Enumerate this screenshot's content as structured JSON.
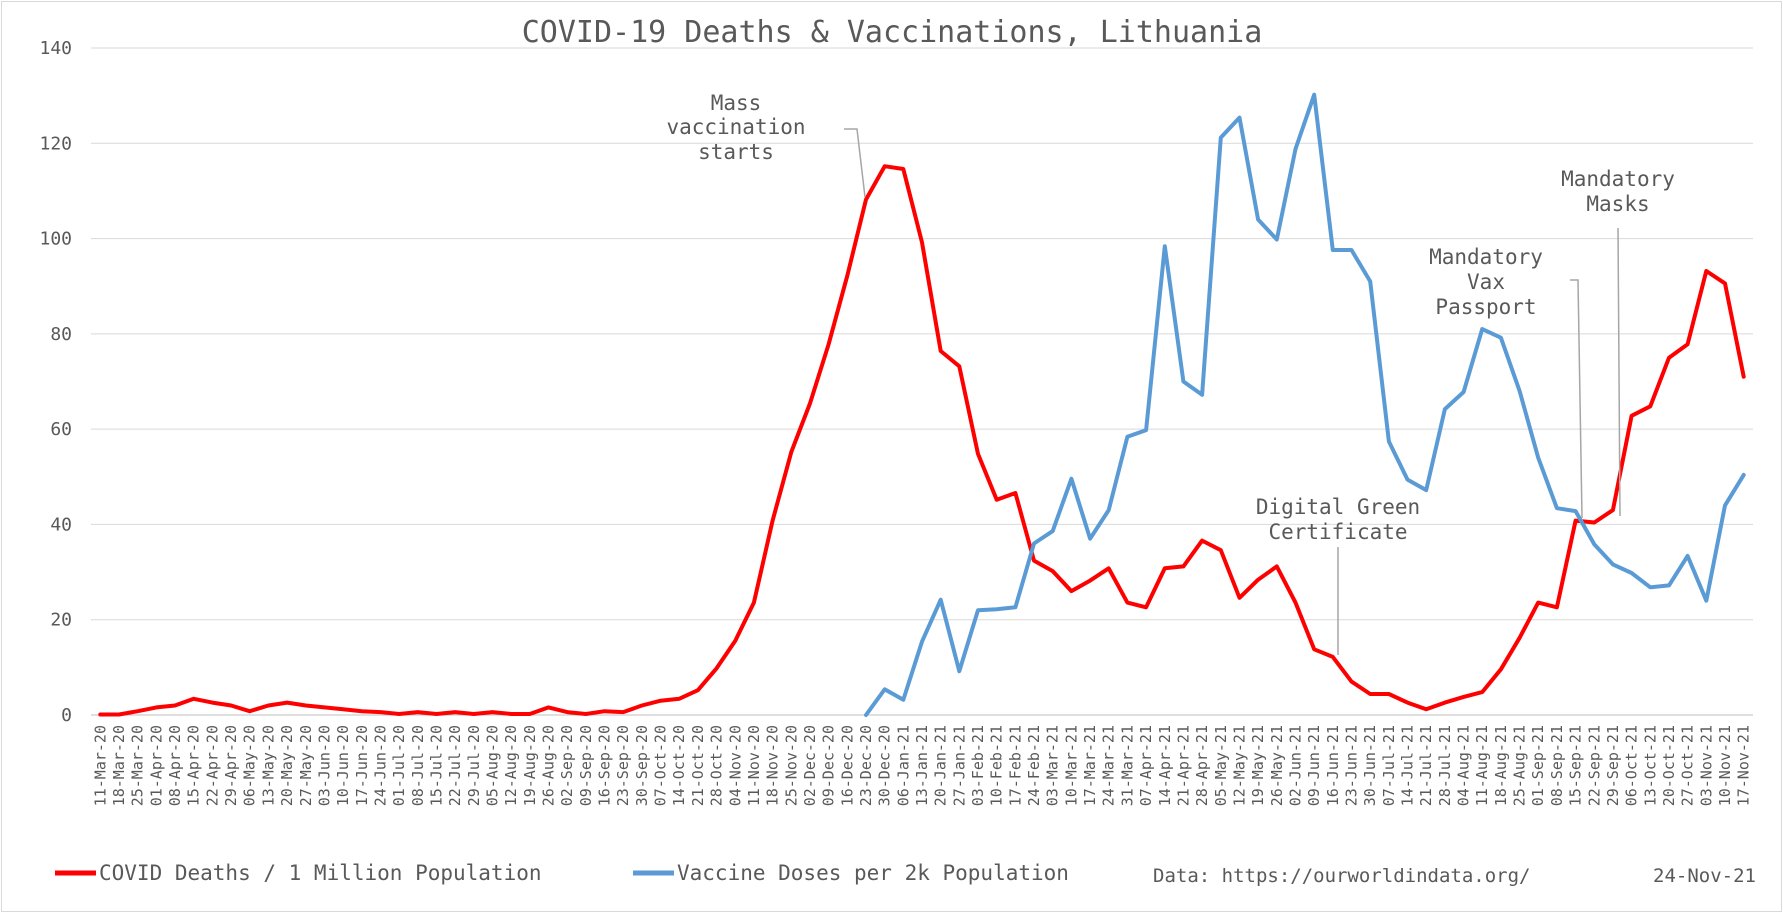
{
  "chart_data": {
    "type": "line",
    "title": "COVID-19 Deaths & Vaccinations, Lithuania",
    "xlabel": "",
    "ylabel": "",
    "ylim": [
      0,
      140
    ],
    "yticks": [
      "0",
      "20",
      "40",
      "60",
      "80",
      "100",
      "120",
      "140"
    ],
    "grid": "horizontal",
    "legend_position": "bottom",
    "categories": [
      "11-Mar-20",
      "18-Mar-20",
      "25-Mar-20",
      "01-Apr-20",
      "08-Apr-20",
      "15-Apr-20",
      "22-Apr-20",
      "29-Apr-20",
      "06-May-20",
      "13-May-20",
      "20-May-20",
      "27-May-20",
      "03-Jun-20",
      "10-Jun-20",
      "17-Jun-20",
      "24-Jun-20",
      "01-Jul-20",
      "08-Jul-20",
      "15-Jul-20",
      "22-Jul-20",
      "29-Jul-20",
      "05-Aug-20",
      "12-Aug-20",
      "19-Aug-20",
      "26-Aug-20",
      "02-Sep-20",
      "09-Sep-20",
      "16-Sep-20",
      "23-Sep-20",
      "30-Sep-20",
      "07-Oct-20",
      "14-Oct-20",
      "21-Oct-20",
      "28-Oct-20",
      "04-Nov-20",
      "11-Nov-20",
      "18-Nov-20",
      "25-Nov-20",
      "02-Dec-20",
      "09-Dec-20",
      "16-Dec-20",
      "23-Dec-20",
      "30-Dec-20",
      "06-Jan-21",
      "13-Jan-21",
      "20-Jan-21",
      "27-Jan-21",
      "03-Feb-21",
      "10-Feb-21",
      "17-Feb-21",
      "24-Feb-21",
      "03-Mar-21",
      "10-Mar-21",
      "17-Mar-21",
      "24-Mar-21",
      "31-Mar-21",
      "07-Apr-21",
      "14-Apr-21",
      "21-Apr-21",
      "28-Apr-21",
      "05-May-21",
      "12-May-21",
      "19-May-21",
      "26-May-21",
      "02-Jun-21",
      "09-Jun-21",
      "16-Jun-21",
      "23-Jun-21",
      "30-Jun-21",
      "07-Jul-21",
      "14-Jul-21",
      "21-Jul-21",
      "28-Jul-21",
      "04-Aug-21",
      "11-Aug-21",
      "18-Aug-21",
      "25-Aug-21",
      "01-Sep-21",
      "08-Sep-21",
      "15-Sep-21",
      "22-Sep-21",
      "29-Sep-21",
      "06-Oct-21",
      "13-Oct-21",
      "20-Oct-21",
      "27-Oct-21",
      "03-Nov-21",
      "10-Nov-21",
      "17-Nov-21"
    ],
    "series": [
      {
        "name": "COVID Deaths / 1 Million Population",
        "color": "#ff0000",
        "values": [
          0.1,
          0.1,
          0.8,
          1.6,
          2.0,
          3.4,
          2.6,
          2.0,
          0.8,
          2.0,
          2.6,
          2.0,
          1.6,
          1.2,
          0.8,
          0.6,
          0.2,
          0.6,
          0.2,
          0.6,
          0.2,
          0.6,
          0.2,
          0.2,
          1.6,
          0.6,
          0.2,
          0.8,
          0.6,
          2.0,
          3.0,
          3.4,
          5.2,
          9.8,
          15.6,
          23.6,
          40.8,
          55.2,
          65.4,
          77.8,
          92.2,
          108.2,
          115.2,
          114.6,
          99.2,
          76.4,
          73.2,
          54.8,
          45.2,
          46.6,
          32.4,
          30.2,
          26.0,
          28.2,
          30.8,
          23.6,
          22.6,
          30.8,
          31.2,
          36.6,
          34.6,
          24.6,
          28.4,
          31.2,
          23.6,
          13.8,
          12.2,
          7.0,
          4.4,
          4.4,
          2.6,
          1.2,
          2.6,
          3.8,
          4.8,
          9.6,
          16.2,
          23.6,
          22.6,
          40.8,
          40.4,
          43.0,
          62.8,
          64.8,
          75.0,
          77.8,
          93.2,
          90.6,
          71.0
        ]
      },
      {
        "name": "Vaccine Doses per 2k Population",
        "color": "#5b9bd5",
        "values": [
          null,
          null,
          null,
          null,
          null,
          null,
          null,
          null,
          null,
          null,
          null,
          null,
          null,
          null,
          null,
          null,
          null,
          null,
          null,
          null,
          null,
          null,
          null,
          null,
          null,
          null,
          null,
          null,
          null,
          null,
          null,
          null,
          null,
          null,
          null,
          null,
          null,
          null,
          null,
          null,
          null,
          0.0,
          5.4,
          3.2,
          15.4,
          24.2,
          9.2,
          22.0,
          22.2,
          22.6,
          36.0,
          38.6,
          49.6,
          37.0,
          43.0,
          58.4,
          59.8,
          98.4,
          70.0,
          67.2,
          121.2,
          125.4,
          104.0,
          99.8,
          118.8,
          130.2,
          97.6,
          97.6,
          91.0,
          57.4,
          49.4,
          47.2,
          64.2,
          67.8,
          81.0,
          79.2,
          68.0,
          54.0,
          43.4,
          42.8,
          35.8,
          31.6,
          29.8,
          26.8,
          27.2,
          33.4,
          24.0,
          44.0,
          50.4
        ]
      }
    ],
    "annotations": [
      {
        "lines": [
          "Mass",
          "vaccination",
          "starts"
        ],
        "at": "23-Dec-20"
      },
      {
        "lines": [
          "Digital Green",
          "Certificate"
        ],
        "at": "16-Jun-21"
      },
      {
        "lines": [
          "Mandatory",
          "Vax",
          "Passport"
        ],
        "at": "15-Sep-21"
      },
      {
        "lines": [
          "Mandatory",
          "Masks"
        ],
        "at": "29-Sep-21"
      }
    ],
    "source_label": "Data: https://ourworldindata.org/",
    "date_label": "24-Nov-21"
  }
}
